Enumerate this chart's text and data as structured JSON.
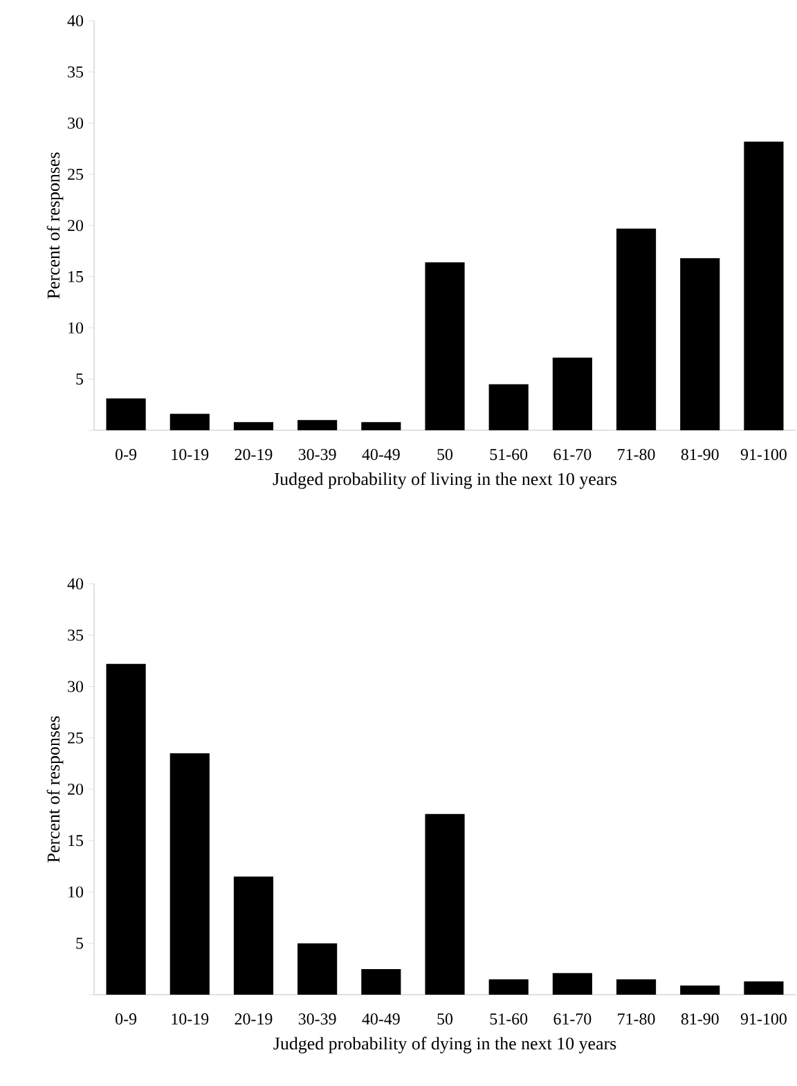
{
  "chart_data": [
    {
      "type": "bar",
      "categories": [
        "0-9",
        "10-19",
        "20-19",
        "30-39",
        "40-49",
        "50",
        "51-60",
        "61-70",
        "71-80",
        "81-90",
        "91-100"
      ],
      "values": [
        3.1,
        1.6,
        0.8,
        1.0,
        0.8,
        16.4,
        4.5,
        7.1,
        19.7,
        16.8,
        28.2
      ],
      "color": "#000000",
      "xlabel": "Judged probability of living in the next 10 years",
      "ylabel": "Percent of responses",
      "ylim": [
        0,
        40
      ],
      "yticks": [
        {
          "value": 0,
          "label": null
        },
        5,
        10,
        15,
        20,
        25,
        30,
        35,
        40
      ]
    },
    {
      "type": "bar",
      "categories": [
        "0-9",
        "10-19",
        "20-19",
        "30-39",
        "40-49",
        "50",
        "51-60",
        "61-70",
        "71-80",
        "81-90",
        "91-100"
      ],
      "values": [
        32.2,
        23.5,
        11.5,
        5.0,
        2.5,
        17.6,
        1.5,
        2.1,
        1.5,
        0.9,
        1.3
      ],
      "color": "#000000",
      "xlabel": "Judged probability of dying in the next 10 years",
      "ylabel": "Percent of responses",
      "ylim": [
        0,
        40
      ],
      "yticks": [
        {
          "value": 0,
          "label": null
        },
        5,
        10,
        15,
        20,
        25,
        30,
        35,
        40
      ]
    }
  ]
}
